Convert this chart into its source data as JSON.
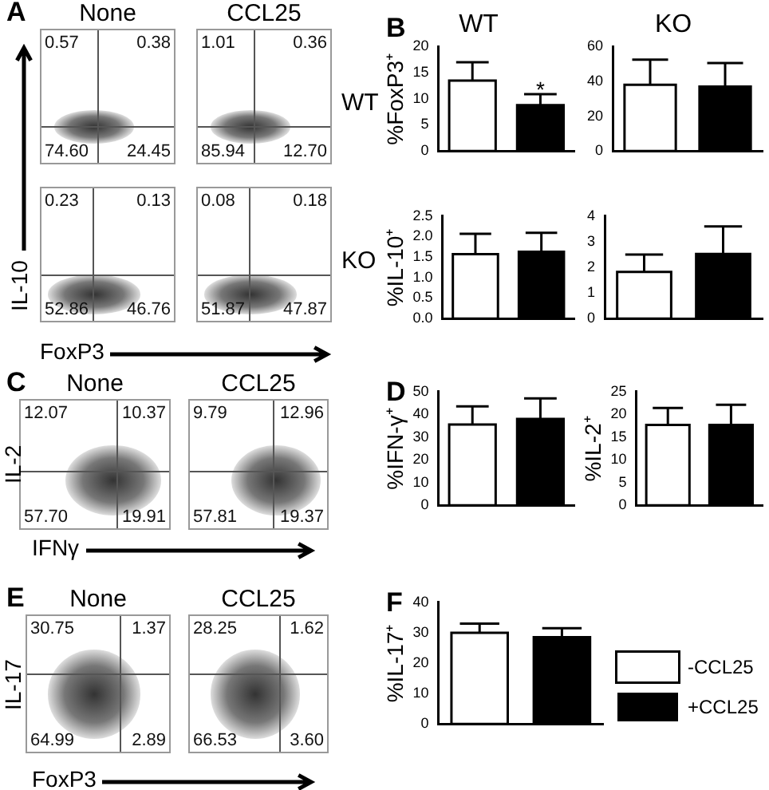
{
  "chart_data": [
    {
      "type": "other",
      "title": "None",
      "ylabel": "IL-10",
      "annotations": [
        "0.57",
        "0.38",
        "74.60",
        "24.45",
        "A"
      ]
    },
    {
      "type": "other",
      "title": "CCL25",
      "annotations": [
        "1.01",
        "0.36",
        "85.94",
        "12.70",
        "WT"
      ]
    },
    {
      "type": "bar",
      "title": "WT",
      "ylabel": "%FoxP3⁺",
      "categories": [
        null,
        null
      ],
      "ylim": [
        0,
        20
      ],
      "yticks": [
        0,
        5,
        10,
        15,
        20
      ],
      "annotations": [
        "B",
        {
          "text": "*",
          "y": 11.5
        }
      ],
      "values": [
        13.5,
        8.8
      ],
      "colors": [
        "#ffffff",
        "#000000"
      ],
      "errors": [
        [
          13.5,
          17
        ],
        [
          8.8,
          10.9
        ]
      ]
    },
    {
      "type": "bar",
      "title": "KO",
      "categories": [
        null,
        null
      ],
      "ylim": [
        0,
        60
      ],
      "yticks": [
        0,
        20,
        40,
        60
      ],
      "values": [
        38,
        37
      ],
      "colors": [
        "#ffffff",
        "#000000"
      ],
      "errors": [
        [
          38,
          52.5
        ],
        [
          37,
          50.5
        ]
      ]
    },
    {
      "type": "other",
      "title": null,
      "xlabel": "FoxP3",
      "annotations": [
        "0.23",
        "0.13",
        "52.86",
        "46.76"
      ]
    },
    {
      "type": "other",
      "title": null,
      "annotations": [
        "0.08",
        "0.18",
        "51.87",
        "47.87",
        "KO"
      ]
    },
    {
      "type": "bar",
      "ylabel": "%IL-10⁺",
      "categories": [
        null,
        null
      ],
      "ylim": [
        0,
        2.5
      ],
      "yticks": [
        {
          "value": 0,
          "label": "0.0"
        },
        0.5,
        {
          "value": 1,
          "label": "1.0"
        },
        1.5,
        {
          "value": 2,
          "label": "2.0"
        },
        2.5
      ],
      "values": [
        1.57,
        1.63
      ],
      "colors": [
        "#ffffff",
        "#000000"
      ],
      "errors": [
        [
          1.57,
          2.07
        ],
        [
          1.63,
          2.09
        ]
      ]
    },
    {
      "type": "bar",
      "categories": [
        null,
        null
      ],
      "ylim": [
        0,
        4
      ],
      "yticks": [
        0,
        1,
        2,
        3,
        4
      ],
      "values": [
        1.82,
        2.52
      ],
      "colors": [
        "#ffffff",
        "#000000"
      ],
      "errors": [
        [
          1.82,
          2.5
        ],
        [
          2.52,
          3.6
        ]
      ]
    },
    {
      "type": "other",
      "title": "None",
      "ylabel": "IL-2",
      "xlabel": "IFNγ",
      "annotations": [
        "12.07",
        "10.37",
        "57.70",
        "19.91",
        "C"
      ]
    },
    {
      "type": "other",
      "title": "CCL25",
      "annotations": [
        "9.79",
        "12.96",
        "57.81",
        "19.37"
      ]
    },
    {
      "type": "bar",
      "ylabel": "%IFN-γ⁺",
      "categories": [
        null,
        null
      ],
      "ylim": [
        0,
        50
      ],
      "yticks": [
        0,
        10,
        20,
        30,
        40,
        50
      ],
      "annotations": [
        "D"
      ],
      "values": [
        35.5,
        38
      ],
      "colors": [
        "#ffffff",
        "#000000"
      ],
      "errors": [
        [
          35.5,
          43.5
        ],
        [
          38,
          47
        ]
      ]
    },
    {
      "type": "bar",
      "ylabel": "%IL-2⁺",
      "categories": [
        null,
        null
      ],
      "ylim": [
        0,
        25
      ],
      "yticks": [
        0,
        5,
        10,
        15,
        20,
        25
      ],
      "values": [
        17.7,
        17.7
      ],
      "colors": [
        "#ffffff",
        "#000000"
      ],
      "errors": [
        [
          17.7,
          21.4
        ],
        [
          17.7,
          22.1
        ]
      ]
    },
    {
      "type": "other",
      "title": "None",
      "ylabel": "IL-17",
      "xlabel": "FoxP3",
      "annotations": [
        "30.75",
        "1.37",
        "64.99",
        "2.89",
        "E"
      ]
    },
    {
      "type": "other",
      "title": "CCL25",
      "annotations": [
        "28.25",
        "1.62",
        "66.53",
        "3.60"
      ]
    },
    {
      "type": "bar",
      "ylabel": "%IL-17⁺",
      "categories": [
        null,
        null
      ],
      "ylim": [
        0,
        40
      ],
      "yticks": [
        0,
        10,
        20,
        30,
        40
      ],
      "legend": "right",
      "annotations": [
        "F"
      ],
      "series": [
        {
          "name": "-CCL25",
          "color": "#ffffff",
          "values": [
            30,
            null
          ],
          "errors": [
            [
              30,
              33
            ],
            null
          ]
        },
        {
          "name": "+CCL25",
          "color": "#000000",
          "values": [
            null,
            28.5
          ],
          "errors": [
            null,
            [
              28.5,
              31.5
            ]
          ]
        }
      ]
    }
  ]
}
